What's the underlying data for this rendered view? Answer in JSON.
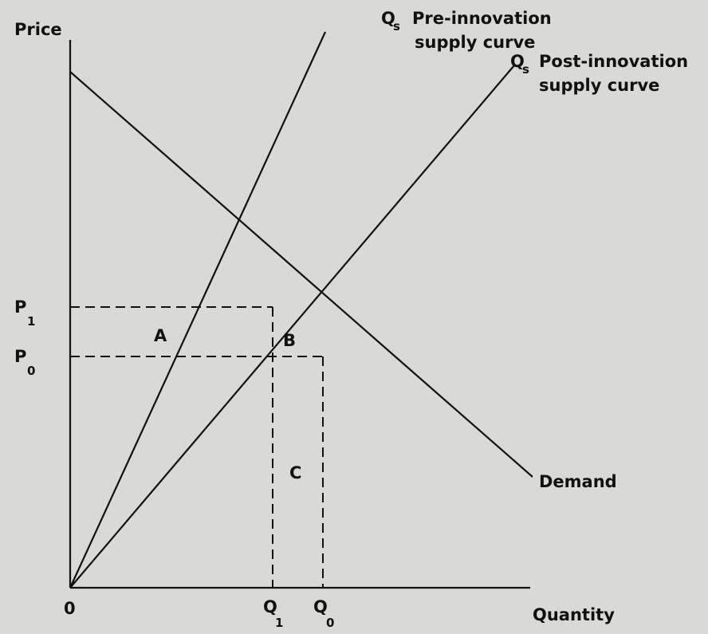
{
  "axes": {
    "y_label": "Price",
    "x_label": "Quantity",
    "origin": "0"
  },
  "curves": {
    "pre_supply": {
      "symbol": "Q",
      "subscript": "s",
      "line1": "Pre-innovation",
      "line2": "supply curve"
    },
    "post_supply": {
      "symbol": "Q",
      "subscript": "s",
      "line1": "Post-innovation",
      "line2": "supply curve"
    },
    "demand": {
      "label": "Demand"
    }
  },
  "prices": [
    {
      "symbol": "P",
      "subscript": "1"
    },
    {
      "symbol": "P",
      "subscript": "0"
    }
  ],
  "quantities": [
    {
      "symbol": "Q",
      "subscript": "1"
    },
    {
      "symbol": "Q",
      "subscript": "0"
    }
  ],
  "areas": [
    "A",
    "B",
    "C"
  ]
}
